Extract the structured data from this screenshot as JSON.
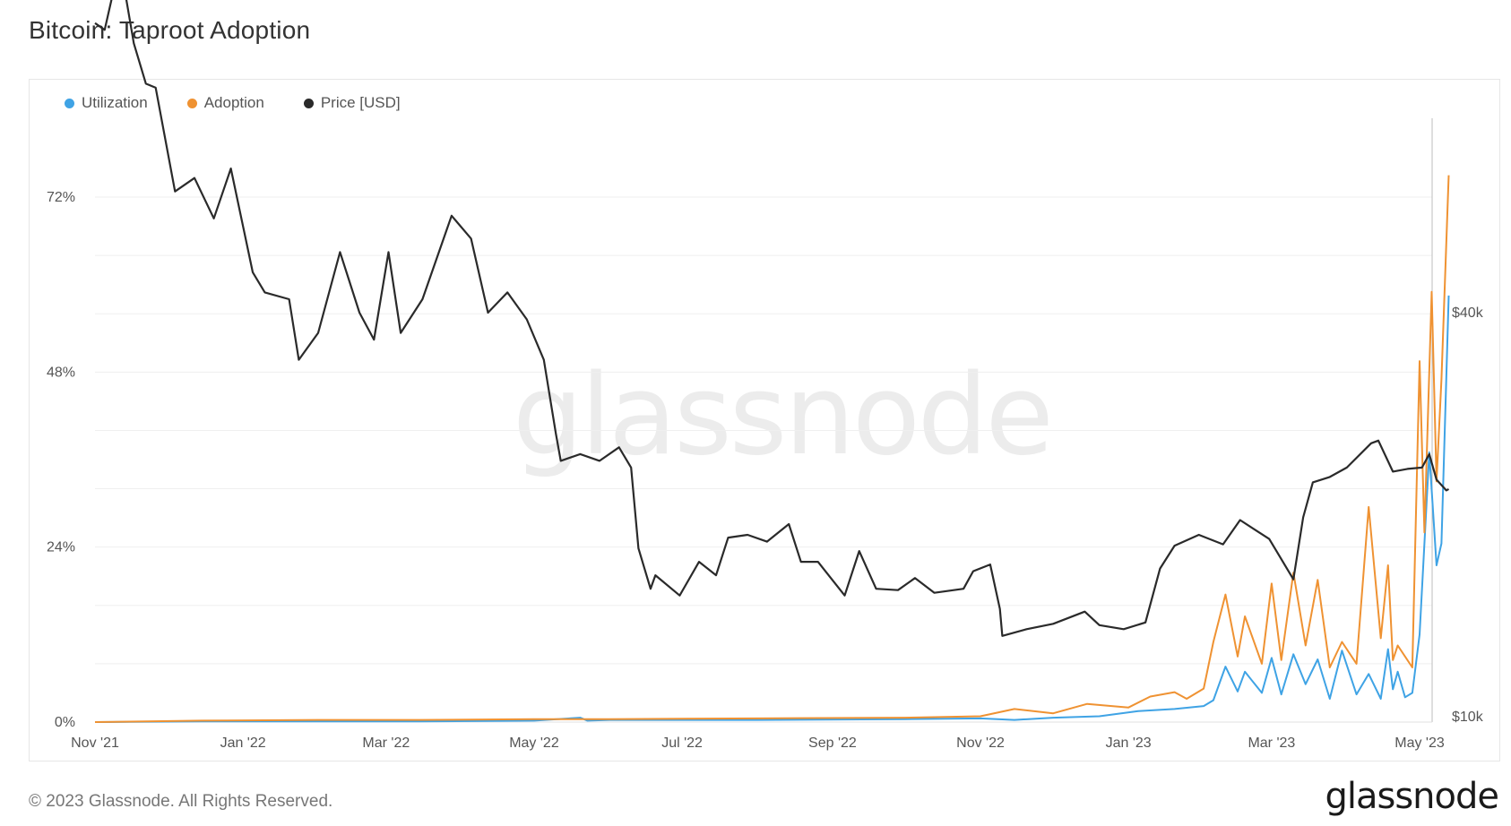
{
  "page": {
    "title": "Bitcoin: Taproot Adoption",
    "copyright": "© 2023 Glassnode. All Rights Reserved.",
    "brand": "glassnode",
    "watermark": "glassnode"
  },
  "chart_data": {
    "type": "line",
    "title": "Bitcoin: Taproot Adoption",
    "legend_position": "top-left",
    "grid": true,
    "x_ticks": [
      "Nov '21",
      "Jan '22",
      "Mar '22",
      "May '22",
      "Jul '22",
      "Sep '22",
      "Nov '22",
      "Jan '23",
      "Mar '23",
      "May '23"
    ],
    "x_range": [
      "2021-11-01",
      "2023-05-01"
    ],
    "y_left": {
      "ticks": [
        "0%",
        "24%",
        "48%",
        "72%"
      ],
      "range": [
        0,
        80
      ]
    },
    "y_right": {
      "ticks": [
        "$10k",
        "$40k"
      ],
      "range_usd": [
        10000,
        40000
      ],
      "scale": "linear"
    },
    "colors": {
      "Utilization": "#3fa3e5",
      "Adoption": "#ef9232",
      "Price [USD]": "#2a2a2a"
    },
    "series": [
      {
        "name": "Utilization",
        "axis": "left",
        "points": [
          [
            "2021-11-01",
            0.0
          ],
          [
            "2021-12-15",
            0.1
          ],
          [
            "2022-02-01",
            0.1
          ],
          [
            "2022-03-15",
            0.1
          ],
          [
            "2022-05-01",
            0.2
          ],
          [
            "2022-05-20",
            0.6
          ],
          [
            "2022-05-23",
            0.2
          ],
          [
            "2022-06-01",
            0.3
          ],
          [
            "2022-08-01",
            0.3
          ],
          [
            "2022-10-01",
            0.4
          ],
          [
            "2022-11-01",
            0.5
          ],
          [
            "2022-11-15",
            0.3
          ],
          [
            "2022-12-01",
            0.6
          ],
          [
            "2022-12-20",
            0.8
          ],
          [
            "2023-01-05",
            1.5
          ],
          [
            "2023-01-20",
            1.8
          ],
          [
            "2023-02-01",
            2.2
          ],
          [
            "2023-02-05",
            3.0
          ],
          [
            "2023-02-10",
            7.6
          ],
          [
            "2023-02-15",
            4.2
          ],
          [
            "2023-02-18",
            6.9
          ],
          [
            "2023-02-25",
            4.0
          ],
          [
            "2023-03-01",
            8.8
          ],
          [
            "2023-03-05",
            3.8
          ],
          [
            "2023-03-10",
            9.3
          ],
          [
            "2023-03-15",
            5.2
          ],
          [
            "2023-03-20",
            8.6
          ],
          [
            "2023-03-25",
            3.2
          ],
          [
            "2023-03-30",
            9.8
          ],
          [
            "2023-04-05",
            3.8
          ],
          [
            "2023-04-10",
            6.6
          ],
          [
            "2023-04-15",
            3.2
          ],
          [
            "2023-04-18",
            10.0
          ],
          [
            "2023-04-20",
            4.5
          ],
          [
            "2023-04-22",
            6.9
          ],
          [
            "2023-04-25",
            3.4
          ],
          [
            "2023-04-28",
            4.0
          ],
          [
            "2023-05-01",
            12.0
          ],
          [
            "2023-05-05",
            37.0
          ],
          [
            "2023-05-08",
            21.5
          ],
          [
            "2023-05-10",
            24.5
          ],
          [
            "2023-05-13",
            58.5
          ]
        ]
      },
      {
        "name": "Adoption",
        "axis": "left",
        "points": [
          [
            "2021-11-01",
            0.0
          ],
          [
            "2021-12-15",
            0.2
          ],
          [
            "2022-02-01",
            0.3
          ],
          [
            "2022-03-15",
            0.3
          ],
          [
            "2022-05-01",
            0.4
          ],
          [
            "2022-06-01",
            0.4
          ],
          [
            "2022-08-01",
            0.5
          ],
          [
            "2022-10-01",
            0.6
          ],
          [
            "2022-11-01",
            0.8
          ],
          [
            "2022-11-15",
            1.8
          ],
          [
            "2022-12-01",
            1.2
          ],
          [
            "2022-12-15",
            2.5
          ],
          [
            "2023-01-01",
            2.0
          ],
          [
            "2023-01-10",
            3.5
          ],
          [
            "2023-01-20",
            4.1
          ],
          [
            "2023-01-25",
            3.2
          ],
          [
            "2023-02-01",
            4.6
          ],
          [
            "2023-02-05",
            11.0
          ],
          [
            "2023-02-10",
            17.5
          ],
          [
            "2023-02-15",
            9.0
          ],
          [
            "2023-02-18",
            14.5
          ],
          [
            "2023-02-25",
            8.0
          ],
          [
            "2023-03-01",
            19.0
          ],
          [
            "2023-03-05",
            8.5
          ],
          [
            "2023-03-10",
            20.5
          ],
          [
            "2023-03-15",
            10.5
          ],
          [
            "2023-03-20",
            19.5
          ],
          [
            "2023-03-25",
            7.5
          ],
          [
            "2023-03-30",
            11.0
          ],
          [
            "2023-04-05",
            8.0
          ],
          [
            "2023-04-10",
            29.5
          ],
          [
            "2023-04-15",
            11.5
          ],
          [
            "2023-04-18",
            21.5
          ],
          [
            "2023-04-20",
            8.5
          ],
          [
            "2023-04-22",
            10.5
          ],
          [
            "2023-04-25",
            9.0
          ],
          [
            "2023-04-28",
            7.5
          ],
          [
            "2023-05-01",
            49.5
          ],
          [
            "2023-05-03",
            26.0
          ],
          [
            "2023-05-06",
            59.0
          ],
          [
            "2023-05-08",
            33.0
          ],
          [
            "2023-05-10",
            47.0
          ],
          [
            "2023-05-13",
            75.0
          ]
        ]
      },
      {
        "name": "Price [USD]",
        "axis": "right",
        "points": [
          [
            "2021-11-01",
            61500
          ],
          [
            "2021-11-05",
            61000
          ],
          [
            "2021-11-10",
            65000
          ],
          [
            "2021-11-13",
            64200
          ],
          [
            "2021-11-17",
            60000
          ],
          [
            "2021-11-22",
            57000
          ],
          [
            "2021-11-26",
            56700
          ],
          [
            "2021-12-04",
            49000
          ],
          [
            "2021-12-12",
            50000
          ],
          [
            "2021-12-20",
            47000
          ],
          [
            "2021-12-27",
            50700
          ],
          [
            "2022-01-05",
            43000
          ],
          [
            "2022-01-10",
            41500
          ],
          [
            "2022-01-20",
            41000
          ],
          [
            "2022-01-24",
            36500
          ],
          [
            "2022-02-01",
            38500
          ],
          [
            "2022-02-10",
            44500
          ],
          [
            "2022-02-18",
            40000
          ],
          [
            "2022-02-24",
            38000
          ],
          [
            "2022-03-02",
            44500
          ],
          [
            "2022-03-07",
            38500
          ],
          [
            "2022-03-16",
            41000
          ],
          [
            "2022-03-28",
            47200
          ],
          [
            "2022-04-05",
            45500
          ],
          [
            "2022-04-12",
            40000
          ],
          [
            "2022-04-20",
            41500
          ],
          [
            "2022-04-28",
            39500
          ],
          [
            "2022-05-05",
            36500
          ],
          [
            "2022-05-10",
            31000
          ],
          [
            "2022-05-12",
            29000
          ],
          [
            "2022-05-20",
            29500
          ],
          [
            "2022-05-28",
            29000
          ],
          [
            "2022-06-05",
            30000
          ],
          [
            "2022-06-10",
            28500
          ],
          [
            "2022-06-13",
            22500
          ],
          [
            "2022-06-18",
            19500
          ],
          [
            "2022-06-20",
            20500
          ],
          [
            "2022-06-30",
            19000
          ],
          [
            "2022-07-08",
            21500
          ],
          [
            "2022-07-15",
            20500
          ],
          [
            "2022-07-20",
            23300
          ],
          [
            "2022-07-28",
            23500
          ],
          [
            "2022-08-05",
            23000
          ],
          [
            "2022-08-14",
            24300
          ],
          [
            "2022-08-19",
            21500
          ],
          [
            "2022-08-26",
            21500
          ],
          [
            "2022-09-06",
            19000
          ],
          [
            "2022-09-12",
            22300
          ],
          [
            "2022-09-19",
            19500
          ],
          [
            "2022-09-28",
            19400
          ],
          [
            "2022-10-05",
            20300
          ],
          [
            "2022-10-13",
            19200
          ],
          [
            "2022-10-25",
            19500
          ],
          [
            "2022-10-29",
            20800
          ],
          [
            "2022-11-05",
            21300
          ],
          [
            "2022-11-09",
            18000
          ],
          [
            "2022-11-10",
            16000
          ],
          [
            "2022-11-20",
            16500
          ],
          [
            "2022-12-01",
            16900
          ],
          [
            "2022-12-14",
            17800
          ],
          [
            "2022-12-20",
            16800
          ],
          [
            "2022-12-30",
            16500
          ],
          [
            "2023-01-08",
            17000
          ],
          [
            "2023-01-14",
            21000
          ],
          [
            "2023-01-20",
            22700
          ],
          [
            "2023-01-30",
            23500
          ],
          [
            "2023-02-09",
            22800
          ],
          [
            "2023-02-16",
            24600
          ],
          [
            "2023-02-28",
            23200
          ],
          [
            "2023-03-03",
            22300
          ],
          [
            "2023-03-10",
            20200
          ],
          [
            "2023-03-14",
            24800
          ],
          [
            "2023-03-18",
            27400
          ],
          [
            "2023-03-25",
            27800
          ],
          [
            "2023-04-01",
            28500
          ],
          [
            "2023-04-11",
            30300
          ],
          [
            "2023-04-14",
            30500
          ],
          [
            "2023-04-20",
            28200
          ],
          [
            "2023-04-26",
            28400
          ],
          [
            "2023-05-02",
            28500
          ],
          [
            "2023-05-05",
            29500
          ],
          [
            "2023-05-08",
            27600
          ],
          [
            "2023-05-12",
            26800
          ],
          [
            "2023-05-13",
            26900
          ]
        ]
      }
    ]
  }
}
